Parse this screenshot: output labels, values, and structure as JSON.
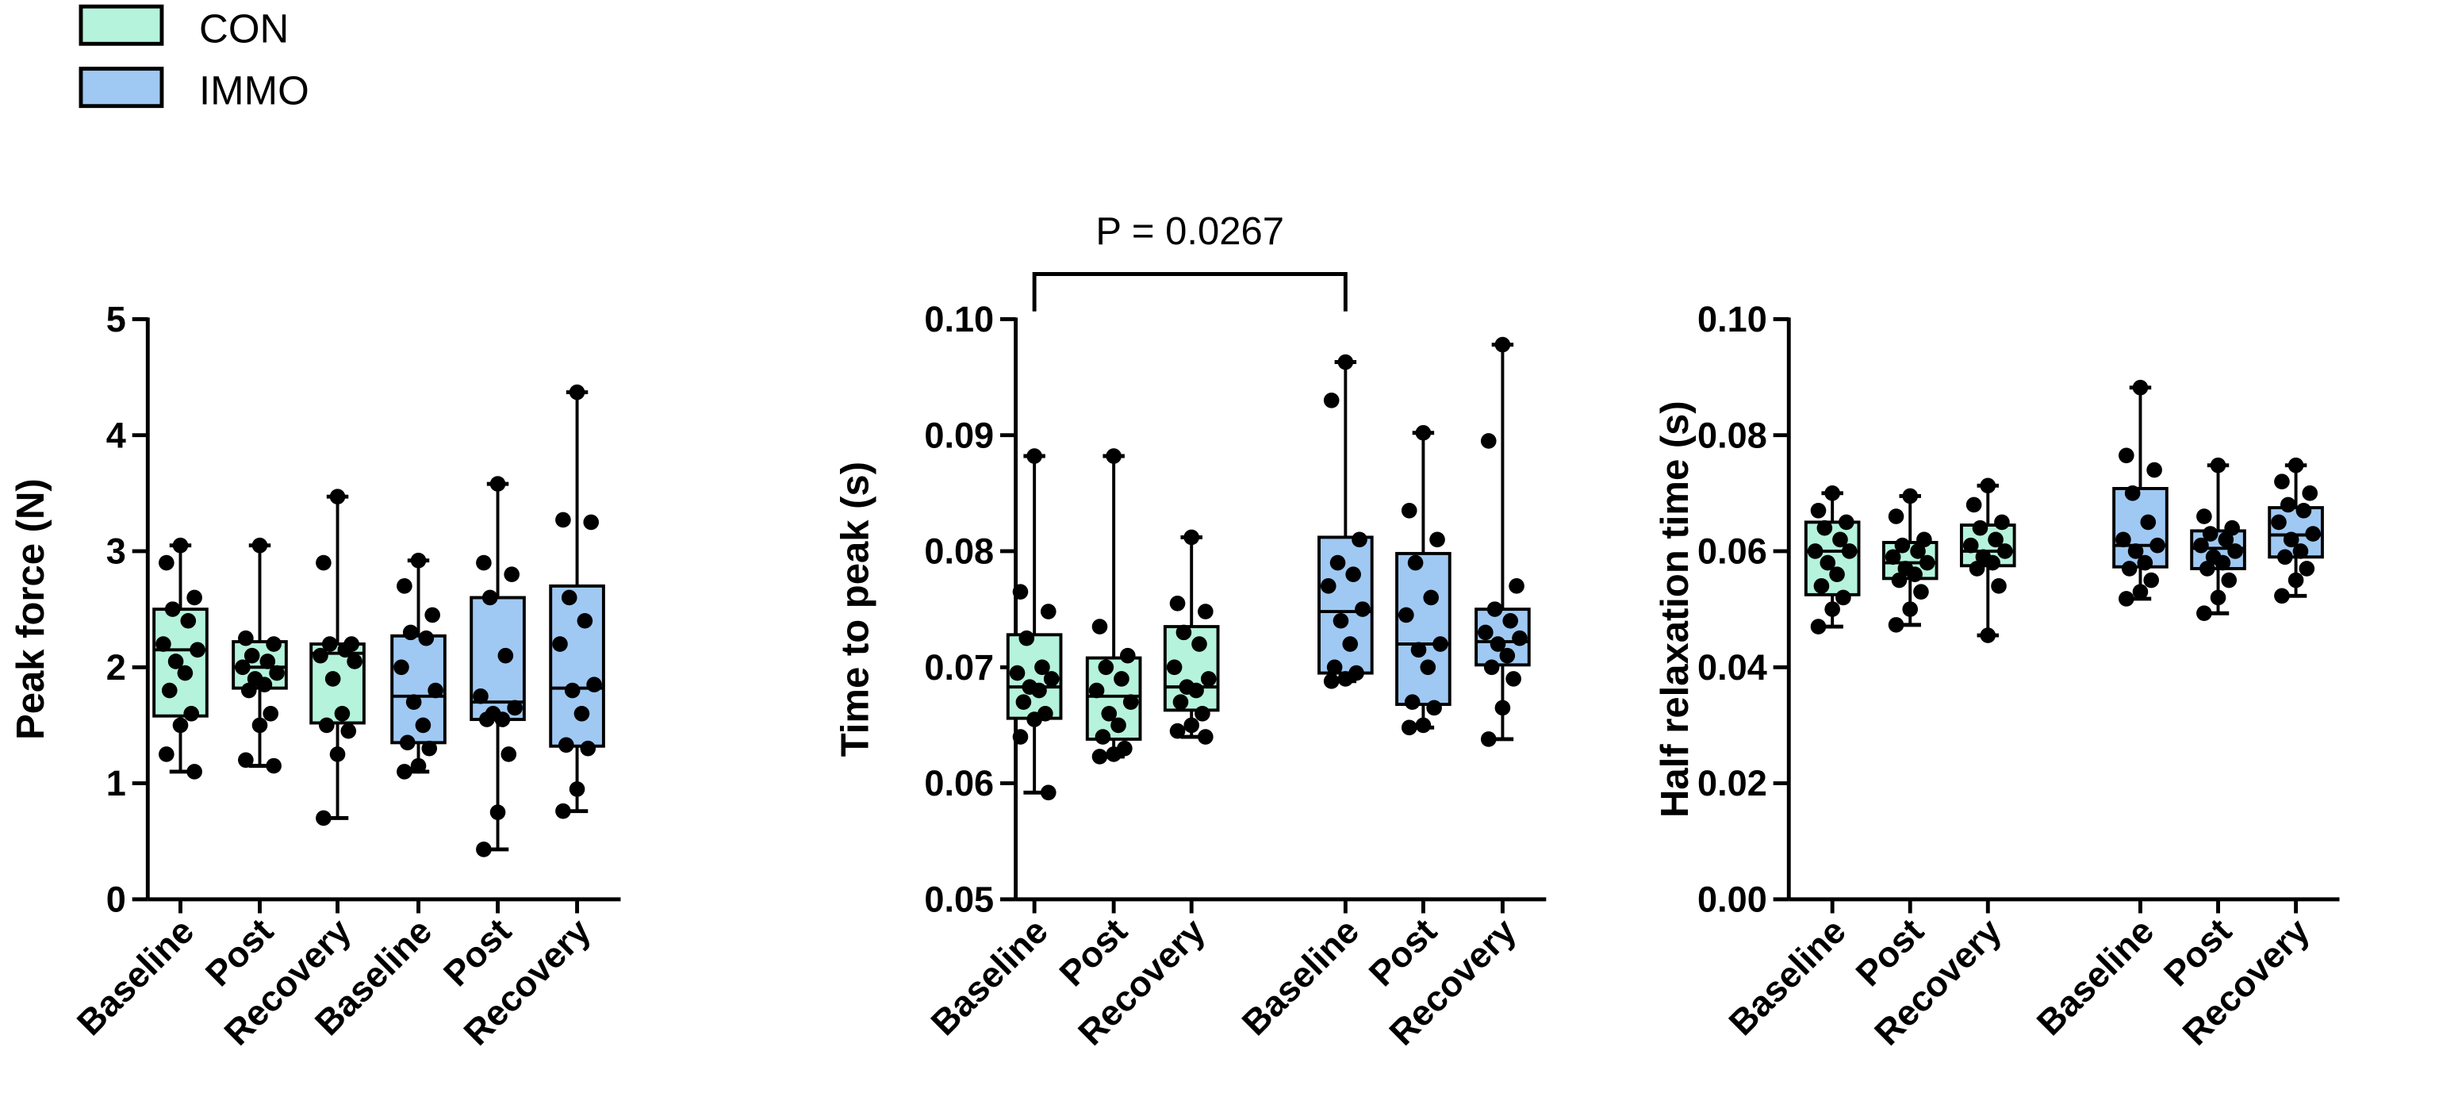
{
  "legend": [
    {
      "label": "CON",
      "color": "#b5f3dc"
    },
    {
      "label": "IMMO",
      "color": "#9fc9f3"
    }
  ],
  "chart_data": [
    {
      "type": "box",
      "panel": "A",
      "ylabel": "Peak force (N)",
      "ylim": [
        0,
        5
      ],
      "yticks": [
        "0",
        "1",
        "2",
        "3",
        "4",
        "5"
      ],
      "ytick_values": [
        0,
        1,
        2,
        3,
        4,
        5
      ],
      "categories": [
        "Baseline",
        "Post",
        "Recovery",
        "Baseline",
        "Post",
        "Recovery"
      ],
      "annotation": null,
      "series": [
        {
          "name": "CON",
          "boxes": [
            {
              "min": 1.1,
              "q1": 1.58,
              "median": 2.15,
              "q3": 2.5,
              "max": 3.05,
              "points": [
                3.05,
                2.9,
                2.6,
                2.5,
                2.4,
                2.2,
                2.15,
                2.05,
                1.95,
                1.8,
                1.6,
                1.5,
                1.25,
                1.1
              ]
            },
            {
              "min": 1.15,
              "q1": 1.82,
              "median": 2.0,
              "q3": 2.22,
              "max": 3.05,
              "points": [
                3.05,
                2.25,
                2.2,
                2.1,
                2.05,
                2.0,
                1.95,
                1.9,
                1.85,
                1.8,
                1.6,
                1.5,
                1.2,
                1.15
              ]
            },
            {
              "min": 0.7,
              "q1": 1.52,
              "median": 2.12,
              "q3": 2.2,
              "max": 3.47,
              "points": [
                3.47,
                2.9,
                2.2,
                2.2,
                2.15,
                2.1,
                2.05,
                1.9,
                1.6,
                1.5,
                1.45,
                1.25,
                0.7
              ]
            }
          ]
        },
        {
          "name": "IMMO",
          "boxes": [
            {
              "min": 1.1,
              "q1": 1.35,
              "median": 1.75,
              "q3": 2.27,
              "max": 2.92,
              "points": [
                2.92,
                2.7,
                2.45,
                2.3,
                2.25,
                2.0,
                1.8,
                1.7,
                1.5,
                1.35,
                1.3,
                1.15,
                1.1
              ]
            },
            {
              "min": 0.43,
              "q1": 1.55,
              "median": 1.7,
              "q3": 2.6,
              "max": 3.58,
              "points": [
                3.58,
                2.9,
                2.8,
                2.6,
                2.1,
                1.75,
                1.65,
                1.6,
                1.55,
                1.55,
                1.25,
                0.75,
                0.43
              ]
            },
            {
              "min": 0.76,
              "q1": 1.32,
              "median": 1.82,
              "q3": 2.7,
              "max": 4.37,
              "points": [
                4.37,
                3.27,
                3.25,
                2.6,
                2.4,
                2.2,
                1.85,
                1.8,
                1.6,
                1.33,
                1.3,
                0.95,
                0.76
              ]
            }
          ]
        }
      ]
    },
    {
      "type": "box",
      "panel": "B",
      "ylabel": "Time to peak (s)",
      "ylim": [
        0.05,
        0.1
      ],
      "yticks": [
        "0.05",
        "0.06",
        "0.07",
        "0.08",
        "0.09",
        "0.10"
      ],
      "ytick_values": [
        0.05,
        0.06,
        0.07,
        0.08,
        0.09,
        0.1
      ],
      "categories": [
        "Baseline",
        "Post",
        "Recovery",
        "Baseline",
        "Post",
        "Recovery"
      ],
      "annotation": {
        "text": "P = 0.0267",
        "from": "CON Baseline",
        "to": "IMMO Baseline"
      },
      "series": [
        {
          "name": "CON",
          "boxes": [
            {
              "min": 0.0592,
              "q1": 0.0656,
              "median": 0.0683,
              "q3": 0.0728,
              "max": 0.0882,
              "points": [
                0.0882,
                0.0765,
                0.0748,
                0.0725,
                0.07,
                0.0695,
                0.069,
                0.0683,
                0.068,
                0.067,
                0.066,
                0.0655,
                0.064,
                0.0592
              ]
            },
            {
              "min": 0.0623,
              "q1": 0.0638,
              "median": 0.0675,
              "q3": 0.0708,
              "max": 0.0882,
              "points": [
                0.0882,
                0.0735,
                0.071,
                0.07,
                0.069,
                0.068,
                0.067,
                0.066,
                0.065,
                0.064,
                0.063,
                0.0625,
                0.0623
              ]
            },
            {
              "min": 0.064,
              "q1": 0.0663,
              "median": 0.0683,
              "q3": 0.0735,
              "max": 0.0812,
              "points": [
                0.0812,
                0.0755,
                0.0748,
                0.073,
                0.072,
                0.07,
                0.069,
                0.0683,
                0.068,
                0.067,
                0.066,
                0.065,
                0.0645,
                0.064
              ]
            }
          ]
        },
        {
          "name": "IMMO",
          "boxes": [
            {
              "min": 0.0688,
              "q1": 0.0695,
              "median": 0.0748,
              "q3": 0.0812,
              "max": 0.0963,
              "points": [
                0.0963,
                0.093,
                0.081,
                0.079,
                0.078,
                0.077,
                0.075,
                0.074,
                0.072,
                0.07,
                0.0695,
                0.069,
                0.0688
              ]
            },
            {
              "min": 0.0648,
              "q1": 0.0668,
              "median": 0.072,
              "q3": 0.0798,
              "max": 0.0902,
              "points": [
                0.0902,
                0.0835,
                0.081,
                0.079,
                0.076,
                0.0745,
                0.072,
                0.0715,
                0.07,
                0.067,
                0.0665,
                0.065,
                0.0648
              ]
            },
            {
              "min": 0.0638,
              "q1": 0.0702,
              "median": 0.0722,
              "q3": 0.075,
              "max": 0.0978,
              "points": [
                0.0978,
                0.0895,
                0.077,
                0.075,
                0.074,
                0.073,
                0.0725,
                0.072,
                0.071,
                0.07,
                0.069,
                0.0665,
                0.0638
              ]
            }
          ]
        }
      ]
    },
    {
      "type": "box",
      "panel": "C",
      "ylabel": "Half relaxation time (s)",
      "ylim": [
        0,
        0.1
      ],
      "yticks": [
        "0.00",
        "0.02",
        "0.04",
        "0.06",
        "0.08",
        "0.10"
      ],
      "ytick_values": [
        0,
        0.02,
        0.04,
        0.06,
        0.08,
        0.1
      ],
      "categories": [
        "Baseline",
        "Post",
        "Recovery",
        "Baseline",
        "Post",
        "Recovery"
      ],
      "annotation": null,
      "series": [
        {
          "name": "CON",
          "boxes": [
            {
              "min": 0.047,
              "q1": 0.0525,
              "median": 0.06,
              "q3": 0.065,
              "max": 0.07,
              "points": [
                0.07,
                0.067,
                0.065,
                0.064,
                0.062,
                0.06,
                0.06,
                0.058,
                0.056,
                0.054,
                0.052,
                0.05,
                0.047
              ]
            },
            {
              "min": 0.0473,
              "q1": 0.0553,
              "median": 0.058,
              "q3": 0.0615,
              "max": 0.0695,
              "points": [
                0.0695,
                0.066,
                0.062,
                0.061,
                0.06,
                0.059,
                0.058,
                0.057,
                0.056,
                0.055,
                0.053,
                0.05,
                0.0473
              ]
            },
            {
              "min": 0.0455,
              "q1": 0.0575,
              "median": 0.06,
              "q3": 0.0645,
              "max": 0.0713,
              "points": [
                0.0713,
                0.068,
                0.065,
                0.064,
                0.062,
                0.061,
                0.06,
                0.059,
                0.058,
                0.057,
                0.054,
                0.0455
              ]
            }
          ]
        },
        {
          "name": "IMMO",
          "boxes": [
            {
              "min": 0.0518,
              "q1": 0.0573,
              "median": 0.061,
              "q3": 0.0708,
              "max": 0.0882,
              "points": [
                0.0882,
                0.0765,
                0.074,
                0.07,
                0.065,
                0.062,
                0.061,
                0.06,
                0.058,
                0.057,
                0.055,
                0.053,
                0.0518
              ]
            },
            {
              "min": 0.0493,
              "q1": 0.057,
              "median": 0.0605,
              "q3": 0.0635,
              "max": 0.0748,
              "points": [
                0.0748,
                0.066,
                0.064,
                0.063,
                0.062,
                0.061,
                0.06,
                0.059,
                0.058,
                0.057,
                0.055,
                0.052,
                0.0493
              ]
            },
            {
              "min": 0.0523,
              "q1": 0.059,
              "median": 0.0628,
              "q3": 0.0675,
              "max": 0.0748,
              "points": [
                0.0748,
                0.072,
                0.07,
                0.068,
                0.067,
                0.065,
                0.063,
                0.062,
                0.06,
                0.059,
                0.057,
                0.055,
                0.0523
              ]
            }
          ]
        }
      ]
    }
  ]
}
